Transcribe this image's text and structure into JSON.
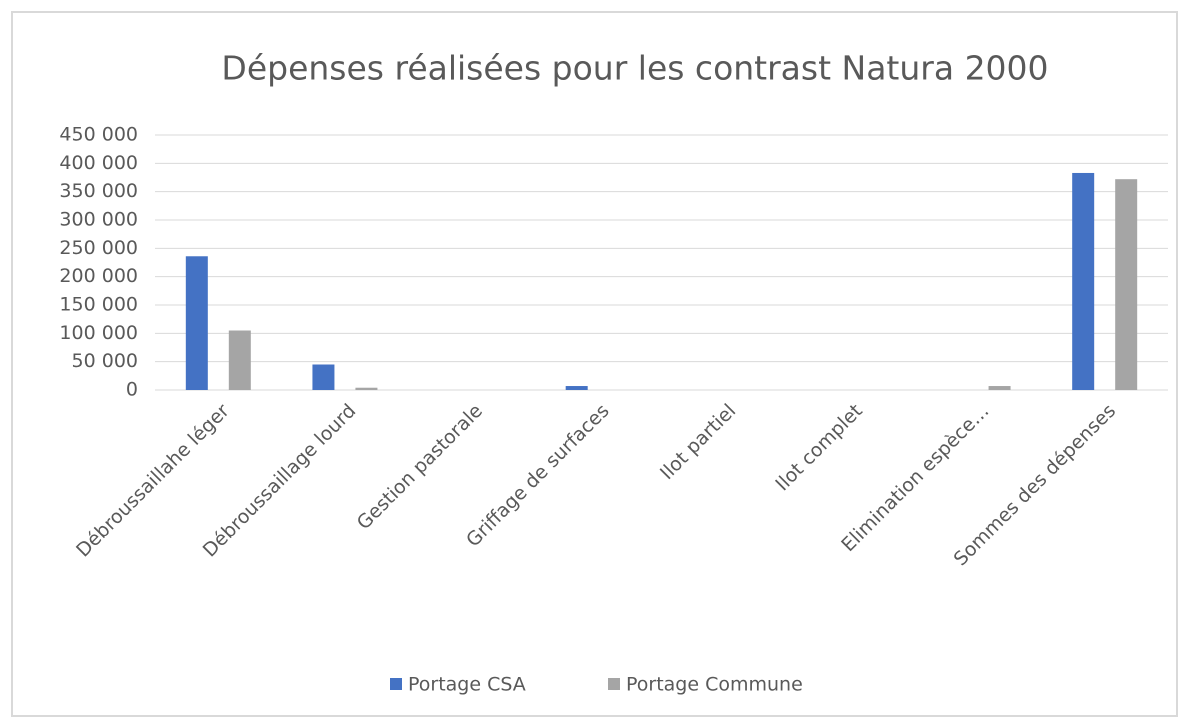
{
  "chart_data": {
    "type": "bar",
    "title": "Dépenses réalisées pour les contrast Natura 2000",
    "categories": [
      "Débroussaillahe léger",
      "Débroussaillage lourd",
      "Gestion pastorale",
      "Griffage de surfaces",
      "Ilot partiel",
      "Ilot complet",
      "Elimination espèce…",
      "Sommes des dépenses"
    ],
    "series": [
      {
        "name": "Portage CSA",
        "color": "#4472c4",
        "values": [
          236000,
          45000,
          0,
          7000,
          0,
          0,
          0,
          383000
        ]
      },
      {
        "name": "Portage Commune",
        "color": "#a5a5a5",
        "values": [
          105000,
          4000,
          0,
          0,
          0,
          0,
          7000,
          372000
        ]
      }
    ],
    "ylim": [
      0,
      450000
    ],
    "yticks": [
      0,
      {
        "value": 50000,
        "label": "50 000"
      },
      {
        "value": 100000,
        "label": "100 000"
      },
      {
        "value": 150000,
        "label": "150 000"
      },
      {
        "value": 200000,
        "label": "200 000"
      },
      {
        "value": 250000,
        "label": "250 000"
      },
      {
        "value": 300000,
        "label": "300 000"
      },
      {
        "value": 350000,
        "label": "350 000"
      },
      {
        "value": 400000,
        "label": "400 000"
      },
      {
        "value": 450000,
        "label": "450 000"
      }
    ],
    "grid": true,
    "legend": "bottom"
  }
}
